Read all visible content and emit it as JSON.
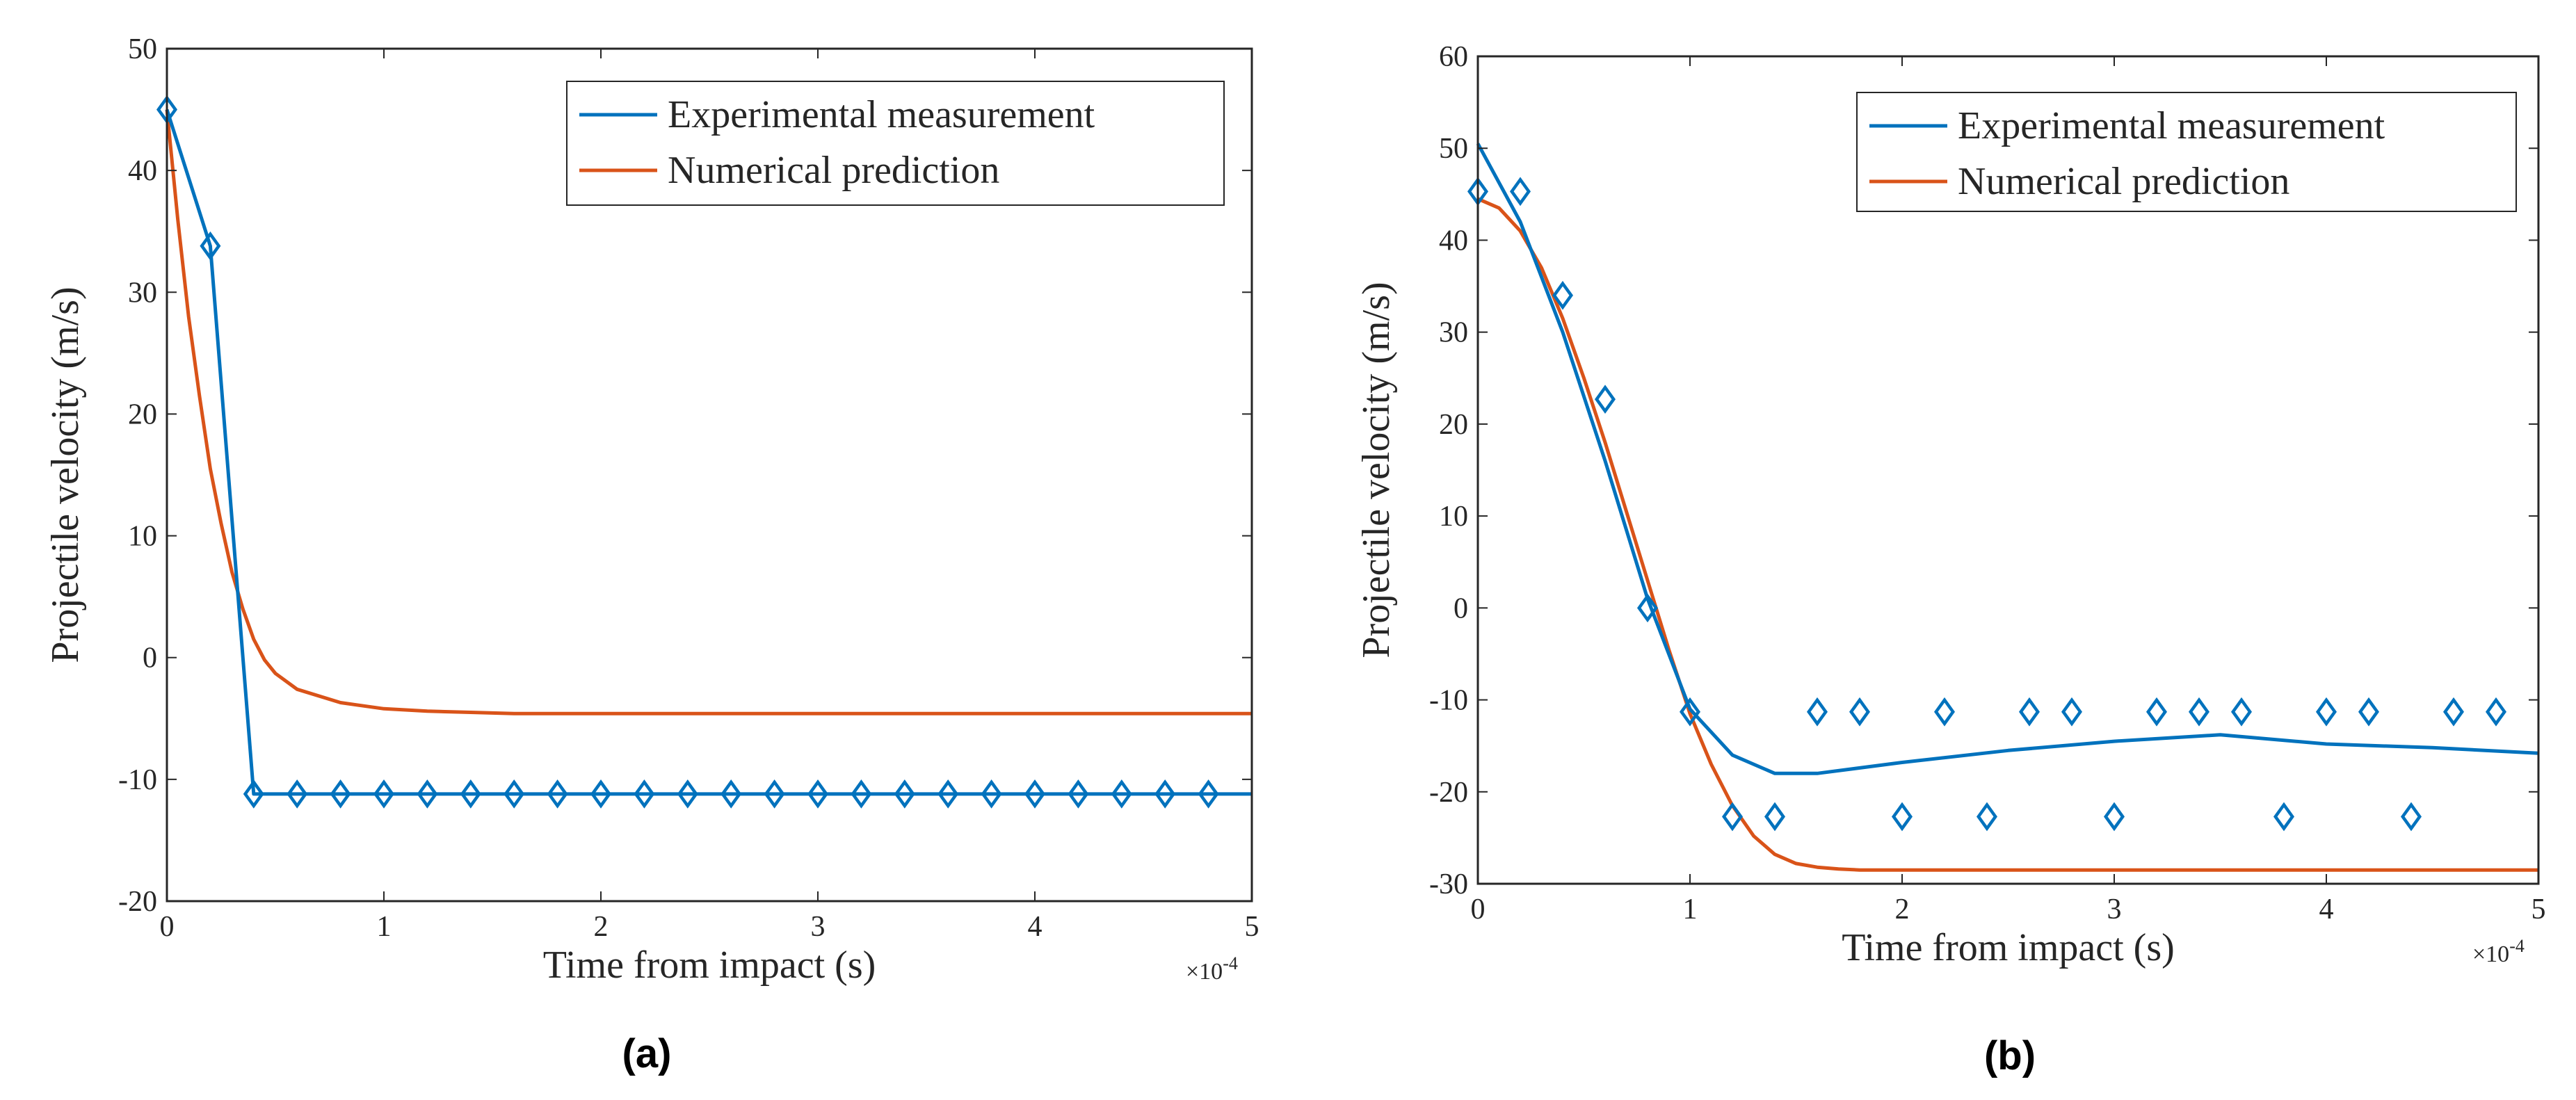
{
  "chart_data": [
    {
      "type": "line",
      "panel_label": "(a)",
      "xlabel": "Time from impact (s)",
      "ylabel": "Projectile velocity (m/s)",
      "x_exponent_base": "×10",
      "x_exponent_power": "-4",
      "xlim": [
        0,
        5
      ],
      "ylim": [
        -20,
        50
      ],
      "xticks": [
        0,
        1,
        2,
        3,
        4,
        5
      ],
      "yticks": [
        -20,
        -10,
        0,
        10,
        20,
        30,
        40,
        50
      ],
      "grid": false,
      "legend_position": "top-right",
      "series": [
        {
          "name": "Experimental measurement",
          "color": "#0072BD",
          "marker": "diamond",
          "x": [
            0,
            0.2,
            0.4,
            0.6,
            0.8,
            1.0,
            1.2,
            1.4,
            1.6,
            1.8,
            2.0,
            2.2,
            2.4,
            2.6,
            2.8,
            3.0,
            3.2,
            3.4,
            3.6,
            3.8,
            4.0,
            4.2,
            4.4,
            4.6,
            4.8
          ],
          "y": [
            45,
            33.8,
            -11.2,
            -11.2,
            -11.2,
            -11.2,
            -11.2,
            -11.2,
            -11.2,
            -11.2,
            -11.2,
            -11.2,
            -11.2,
            -11.2,
            -11.2,
            -11.2,
            -11.2,
            -11.2,
            -11.2,
            -11.2,
            -11.2,
            -11.2,
            -11.2,
            -11.2,
            -11.2
          ],
          "line_x": [
            0,
            0.2,
            0.4,
            5.0
          ],
          "line_y": [
            45,
            33.8,
            -11.2,
            -11.2
          ]
        },
        {
          "name": "Numerical prediction",
          "color": "#D95319",
          "marker": "none",
          "x": [
            0,
            0.05,
            0.1,
            0.15,
            0.2,
            0.25,
            0.3,
            0.35,
            0.4,
            0.45,
            0.5,
            0.6,
            0.8,
            1.0,
            1.2,
            1.4,
            1.6,
            2.0,
            3.0,
            4.0,
            5.0
          ],
          "y": [
            45,
            36,
            28,
            21.5,
            15.5,
            11,
            7,
            4,
            1.5,
            -0.2,
            -1.3,
            -2.6,
            -3.7,
            -4.2,
            -4.4,
            -4.5,
            -4.6,
            -4.6,
            -4.6,
            -4.6,
            -4.6
          ]
        }
      ]
    },
    {
      "type": "line",
      "panel_label": "(b)",
      "xlabel": "Time from impact (s)",
      "ylabel": "Projectile velocity (m/s)",
      "x_exponent_base": "×10",
      "x_exponent_power": "-4",
      "xlim": [
        0,
        5
      ],
      "ylim": [
        -30,
        60
      ],
      "xticks": [
        0,
        1,
        2,
        3,
        4,
        5
      ],
      "yticks": [
        -30,
        -20,
        -10,
        0,
        10,
        20,
        30,
        40,
        50,
        60
      ],
      "grid": false,
      "legend_position": "top-right",
      "series": [
        {
          "name": "Experimental measurement",
          "color": "#0072BD",
          "marker": "diamond",
          "x": [
            0,
            0.2,
            0.4,
            0.6,
            0.8,
            1.0,
            1.2,
            1.4,
            1.6,
            1.8,
            2.0,
            2.2,
            2.4,
            2.6,
            2.8,
            3.0,
            3.2,
            3.4,
            3.6,
            3.8,
            4.0,
            4.2,
            4.4,
            4.6,
            4.8
          ],
          "y": [
            45.3,
            45.3,
            34,
            22.7,
            0,
            -11.3,
            -22.7,
            -22.7,
            -11.3,
            -11.3,
            -22.7,
            -11.3,
            -22.7,
            -11.3,
            -11.3,
            -22.7,
            -11.3,
            -11.3,
            -11.3,
            -22.7,
            -11.3,
            -11.3,
            -22.7,
            -11.3,
            -11.3
          ],
          "line_x": [
            0,
            0.2,
            0.4,
            0.6,
            0.8,
            1.0,
            1.2,
            1.4,
            1.6,
            2.0,
            2.5,
            3.0,
            3.5,
            4.0,
            4.5,
            5.0
          ],
          "line_y": [
            50.5,
            42,
            30,
            16,
            1,
            -11,
            -16,
            -18,
            -18,
            -16.8,
            -15.5,
            -14.5,
            -13.8,
            -14.8,
            -15.2,
            -15.8
          ]
        },
        {
          "name": "Numerical prediction",
          "color": "#D95319",
          "marker": "none",
          "x": [
            0,
            0.1,
            0.2,
            0.3,
            0.4,
            0.5,
            0.6,
            0.7,
            0.8,
            0.9,
            1.0,
            1.1,
            1.2,
            1.3,
            1.4,
            1.5,
            1.6,
            1.7,
            1.8,
            2.0,
            3.0,
            4.0,
            5.0
          ],
          "y": [
            44.5,
            43.5,
            41,
            37,
            31.5,
            25,
            18,
            10.5,
            3,
            -4.5,
            -11.5,
            -17,
            -21.5,
            -24.8,
            -26.8,
            -27.8,
            -28.2,
            -28.4,
            -28.5,
            -28.5,
            -28.5,
            -28.5,
            -28.5
          ]
        }
      ]
    }
  ]
}
